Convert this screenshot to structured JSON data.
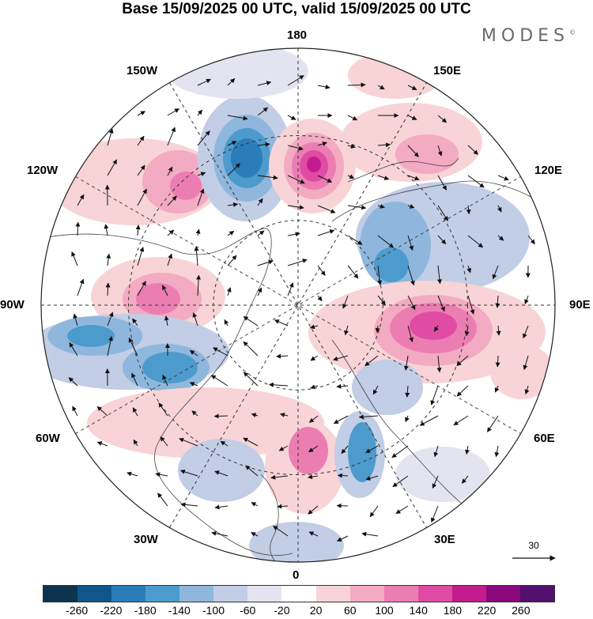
{
  "title": "Base 15/09/2025 00 UTC, valid 15/09/2025 00 UTC",
  "brand": "MODES",
  "brand_mark": "©",
  "longitude_labels": {
    "top": "180",
    "bottom": "0",
    "left": "90W",
    "right": "90E",
    "upper_left_1": "150W",
    "upper_left_2": "120W",
    "upper_right_1": "150E",
    "upper_right_2": "120E",
    "lower_left_1": "60W",
    "lower_left_2": "30W",
    "lower_right_1": "60E",
    "lower_right_2": "30E"
  },
  "vector_reference": {
    "label": "30",
    "icon": "reference-arrow-icon"
  },
  "colorbar": {
    "tick_labels": [
      "-260",
      "-220",
      "-180",
      "-140",
      "-100",
      "-60",
      "-20",
      "20",
      "60",
      "100",
      "140",
      "180",
      "220",
      "260"
    ],
    "colors": [
      "#0d3350",
      "#11568a",
      "#2a7db8",
      "#4d9bcd",
      "#8fb7dd",
      "#c2cde6",
      "#e4e4f1",
      "#ffffff",
      "#f8d4d6",
      "#f3aac3",
      "#ec7db2",
      "#e04ba3",
      "#c41c8e",
      "#8a087a",
      "#54106e"
    ]
  },
  "map_colors": {
    "land": "#cfcfcf",
    "coast": "#333333",
    "grid": "#333333",
    "disc_border": "#222222"
  },
  "anomaly_features": [
    {
      "label": "blue-pacific-low",
      "value": -220
    },
    {
      "label": "magenta-siberia-high",
      "value": 200
    },
    {
      "label": "pink-alaska-high",
      "value": 120
    },
    {
      "label": "blue-canada-low",
      "value": -200
    },
    {
      "label": "magenta-siberia-central-high",
      "value": 180
    },
    {
      "label": "blue-scandinavia-low",
      "value": -180
    },
    {
      "label": "pink-north-atlantic-high",
      "value": 140
    }
  ]
}
